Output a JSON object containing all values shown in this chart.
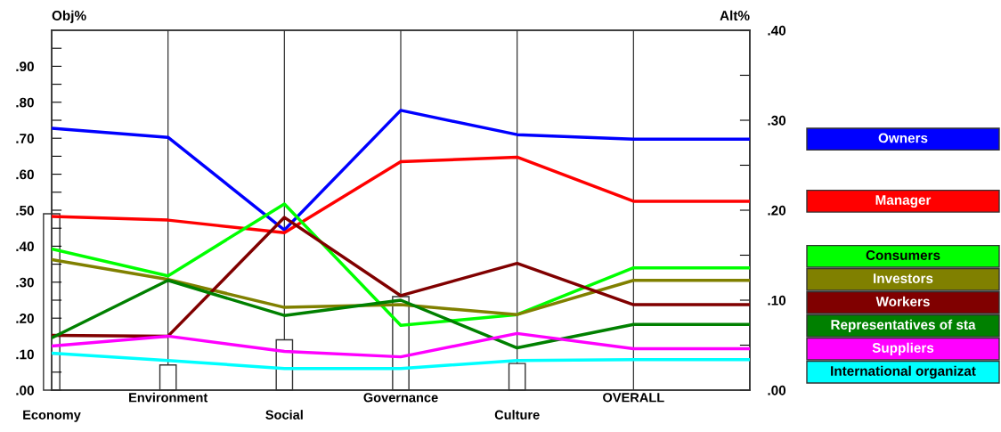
{
  "chart_data": {
    "type": "line",
    "ylabel": "Obj%",
    "y2label": "Alt%",
    "categories": [
      "Economy",
      "Environment",
      "Social",
      "Governance",
      "Culture",
      "OVERALL",
      null
    ],
    "series": [
      {
        "type": "bar",
        "axis": "y",
        "color": "#ffffff",
        "values": [
          0.49,
          0.07,
          0.14,
          0.26,
          0.074,
          null,
          null
        ]
      },
      {
        "name": "Owners",
        "axis": "y2",
        "color": "#0000ff",
        "values": [
          0.291,
          0.281,
          0.178,
          0.311,
          0.284,
          0.279,
          0.279
        ]
      },
      {
        "name": "Manager",
        "axis": "y2",
        "color": "#ff0000",
        "values": [
          0.193,
          0.189,
          0.175,
          0.254,
          0.259,
          0.21,
          0.21
        ]
      },
      {
        "name": "Consumers",
        "axis": "y2",
        "color": "#00ff00",
        "values": [
          0.157,
          0.127,
          0.207,
          0.072,
          0.084,
          0.136,
          0.136
        ]
      },
      {
        "name": "Investors",
        "axis": "y2",
        "color": "#808000",
        "values": [
          0.145,
          0.123,
          0.092,
          0.095,
          0.084,
          0.122,
          0.122
        ]
      },
      {
        "name": "Workers",
        "axis": "y2",
        "color": "#800000",
        "values": [
          0.061,
          0.06,
          0.192,
          0.105,
          0.141,
          0.095,
          0.095
        ]
      },
      {
        "name": "Representatives of sta",
        "axis": "y2",
        "color": "#008000",
        "values": [
          0.058,
          0.122,
          0.083,
          0.1,
          0.047,
          0.073,
          0.073
        ]
      },
      {
        "name": "Suppliers",
        "axis": "y2",
        "color": "#ff00ff",
        "values": [
          0.049,
          0.06,
          0.043,
          0.037,
          0.063,
          0.046,
          0.046
        ]
      },
      {
        "name": "International organizat",
        "axis": "y2",
        "color": "#00ffff",
        "values": [
          0.041,
          0.033,
          0.024,
          0.024,
          0.033,
          0.034,
          0.034
        ]
      }
    ],
    "ylim": [
      0,
      1
    ],
    "yticks": [
      {
        "value": 0,
        "label": ".00"
      },
      {
        "value": 0.05,
        "label": null
      },
      {
        "value": 0.1,
        "label": ".10"
      },
      {
        "value": 0.15,
        "label": null
      },
      {
        "value": 0.2,
        "label": ".20"
      },
      {
        "value": 0.25,
        "label": null
      },
      {
        "value": 0.3,
        "label": ".30"
      },
      {
        "value": 0.35,
        "label": null
      },
      {
        "value": 0.4,
        "label": ".40"
      },
      {
        "value": 0.45,
        "label": null
      },
      {
        "value": 0.5,
        "label": ".50"
      },
      {
        "value": 0.55,
        "label": null
      },
      {
        "value": 0.6,
        "label": ".60"
      },
      {
        "value": 0.65,
        "label": null
      },
      {
        "value": 0.7,
        "label": ".70"
      },
      {
        "value": 0.75,
        "label": null
      },
      {
        "value": 0.8,
        "label": ".80"
      },
      {
        "value": 0.85,
        "label": null
      },
      {
        "value": 0.9,
        "label": ".90"
      },
      {
        "value": 0.95,
        "label": null
      }
    ],
    "y2lim": [
      0,
      0.4
    ],
    "y2ticks": [
      {
        "value": 0,
        "label": ".00"
      },
      {
        "value": 0.05,
        "label": null
      },
      {
        "value": 0.1,
        "label": ".10"
      },
      {
        "value": 0.15,
        "label": null
      },
      {
        "value": 0.2,
        "label": ".20"
      },
      {
        "value": 0.25,
        "label": null
      },
      {
        "value": 0.3,
        "label": ".30"
      },
      {
        "value": 0.35,
        "label": null
      },
      {
        "value": 0.4,
        "label": ".40"
      }
    ],
    "grid": "x",
    "legend": "right"
  }
}
